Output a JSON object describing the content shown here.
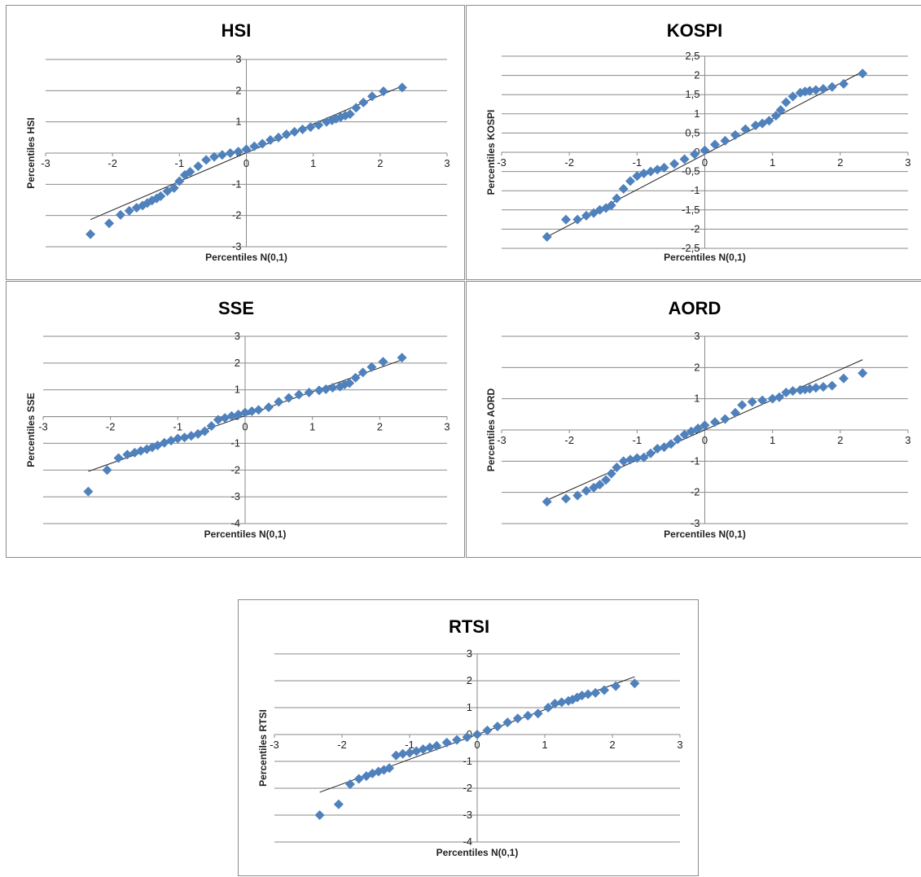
{
  "chart_data": [
    {
      "type": "scatter",
      "title": "HSI",
      "xlabel": "Percentiles N(0,1)",
      "ylabel": "Percentiles HSI",
      "xlim": [
        -3,
        3
      ],
      "ylim": [
        -3,
        3
      ],
      "xticks": [
        "-3",
        "-2",
        "-1",
        "0",
        "1",
        "2",
        "3"
      ],
      "yticks": [
        "3",
        "2",
        "1",
        "0",
        "-1",
        "-2",
        "-3"
      ],
      "grid": true,
      "marker_color": "#4F81BD",
      "reference_line": [
        [
          -2.33,
          -2.13
        ],
        [
          2.33,
          2.15
        ]
      ],
      "series": [
        {
          "x": [
            -2.33,
            -2.05,
            -1.88,
            -1.75,
            -1.64,
            -1.55,
            -1.48,
            -1.41,
            -1.34,
            -1.28,
            -1.18,
            -1.08,
            -1.0,
            -0.92,
            -0.84,
            -0.72,
            -0.6,
            -0.48,
            -0.36,
            -0.24,
            -0.12,
            0.0,
            0.12,
            0.24,
            0.36,
            0.48,
            0.6,
            0.72,
            0.84,
            0.96,
            1.08,
            1.2,
            1.28,
            1.34,
            1.41,
            1.48,
            1.55,
            1.64,
            1.75,
            1.88,
            2.05,
            2.33
          ],
          "y": [
            -2.6,
            -2.25,
            -1.98,
            -1.85,
            -1.75,
            -1.68,
            -1.6,
            -1.52,
            -1.45,
            -1.38,
            -1.22,
            -1.12,
            -0.9,
            -0.7,
            -0.6,
            -0.42,
            -0.22,
            -0.12,
            -0.06,
            0.0,
            0.05,
            0.12,
            0.22,
            0.3,
            0.42,
            0.5,
            0.6,
            0.68,
            0.76,
            0.83,
            0.9,
            1.0,
            1.05,
            1.1,
            1.15,
            1.2,
            1.25,
            1.45,
            1.62,
            1.82,
            1.98,
            2.1
          ]
        }
      ]
    },
    {
      "type": "scatter",
      "title": "KOSPI",
      "xlabel": "Percentiles N(0,1)",
      "ylabel": "Percentiles KOSPI",
      "xlim": [
        -3,
        3
      ],
      "ylim": [
        -2.5,
        2.5
      ],
      "xticks": [
        "-3",
        "-2",
        "-1",
        "0",
        "1",
        "2",
        "3"
      ],
      "yticks": [
        "2,5",
        "2",
        "1,5",
        "1",
        "0,5",
        "0",
        "-0,5",
        "-1",
        "-1,5",
        "-2",
        "-2,5"
      ],
      "grid": true,
      "marker_color": "#4F81BD",
      "reference_line": [
        [
          -2.33,
          -2.2
        ],
        [
          2.33,
          2.1
        ]
      ],
      "series": [
        {
          "x": [
            -2.33,
            -2.05,
            -1.88,
            -1.75,
            -1.64,
            -1.55,
            -1.46,
            -1.38,
            -1.3,
            -1.2,
            -1.1,
            -1.0,
            -0.9,
            -0.8,
            -0.7,
            -0.6,
            -0.45,
            -0.3,
            -0.15,
            0.0,
            0.15,
            0.3,
            0.45,
            0.6,
            0.75,
            0.85,
            0.95,
            1.05,
            1.12,
            1.2,
            1.3,
            1.41,
            1.48,
            1.55,
            1.64,
            1.75,
            1.88,
            2.05,
            2.33
          ],
          "y": [
            -2.2,
            -1.75,
            -1.75,
            -1.65,
            -1.58,
            -1.5,
            -1.45,
            -1.38,
            -1.2,
            -0.95,
            -0.75,
            -0.62,
            -0.55,
            -0.5,
            -0.45,
            -0.4,
            -0.3,
            -0.18,
            -0.05,
            0.05,
            0.2,
            0.3,
            0.45,
            0.6,
            0.7,
            0.75,
            0.82,
            0.95,
            1.1,
            1.3,
            1.45,
            1.55,
            1.58,
            1.6,
            1.62,
            1.65,
            1.7,
            1.78,
            2.05
          ]
        }
      ]
    },
    {
      "type": "scatter",
      "title": "SSE",
      "xlabel": "Percentiles N(0,1)",
      "ylabel": "Percentiles SSE",
      "xlim": [
        -3,
        3
      ],
      "ylim": [
        -4,
        3
      ],
      "xticks": [
        "-3",
        "-2",
        "-1",
        "0",
        "1",
        "2",
        "3"
      ],
      "yticks": [
        "3",
        "2",
        "1",
        "0",
        "-1",
        "-2",
        "-3",
        "-4"
      ],
      "grid": true,
      "marker_color": "#4F81BD",
      "reference_line": [
        [
          -2.33,
          -2.05
        ],
        [
          2.33,
          2.12
        ]
      ],
      "series": [
        {
          "x": [
            -2.33,
            -2.05,
            -1.88,
            -1.75,
            -1.64,
            -1.55,
            -1.46,
            -1.38,
            -1.3,
            -1.2,
            -1.1,
            -1.0,
            -0.9,
            -0.8,
            -0.7,
            -0.6,
            -0.5,
            -0.4,
            -0.3,
            -0.2,
            -0.1,
            0.0,
            0.1,
            0.2,
            0.35,
            0.5,
            0.65,
            0.8,
            0.95,
            1.1,
            1.2,
            1.3,
            1.41,
            1.48,
            1.55,
            1.64,
            1.75,
            1.88,
            2.05,
            2.33
          ],
          "y": [
            -2.8,
            -2.0,
            -1.55,
            -1.42,
            -1.35,
            -1.28,
            -1.22,
            -1.15,
            -1.08,
            -0.98,
            -0.9,
            -0.82,
            -0.78,
            -0.72,
            -0.65,
            -0.55,
            -0.35,
            -0.12,
            -0.05,
            0.02,
            0.08,
            0.15,
            0.2,
            0.25,
            0.35,
            0.55,
            0.7,
            0.82,
            0.9,
            0.98,
            1.02,
            1.08,
            1.12,
            1.2,
            1.25,
            1.45,
            1.65,
            1.85,
            2.05,
            2.2
          ]
        }
      ]
    },
    {
      "type": "scatter",
      "title": "AORD",
      "xlabel": "Percentiles N(0,1)",
      "ylabel": "Percentiles AORD",
      "xlim": [
        -3,
        3
      ],
      "ylim": [
        -3,
        3
      ],
      "xticks": [
        "-3",
        "-2",
        "-1",
        "0",
        "1",
        "2",
        "3"
      ],
      "yticks": [
        "3",
        "2",
        "1",
        "0",
        "-1",
        "-2",
        "-3"
      ],
      "grid": true,
      "marker_color": "#4F81BD",
      "reference_line": [
        [
          -2.33,
          -2.25
        ],
        [
          2.33,
          2.25
        ]
      ],
      "series": [
        {
          "x": [
            -2.33,
            -2.05,
            -1.88,
            -1.75,
            -1.64,
            -1.55,
            -1.46,
            -1.38,
            -1.3,
            -1.2,
            -1.1,
            -1.0,
            -0.9,
            -0.8,
            -0.7,
            -0.6,
            -0.5,
            -0.4,
            -0.3,
            -0.2,
            -0.1,
            0.0,
            0.15,
            0.3,
            0.45,
            0.55,
            0.7,
            0.85,
            1.0,
            1.1,
            1.2,
            1.3,
            1.41,
            1.48,
            1.55,
            1.64,
            1.75,
            1.88,
            2.05,
            2.33
          ],
          "y": [
            -2.3,
            -2.2,
            -2.1,
            -1.95,
            -1.85,
            -1.75,
            -1.6,
            -1.4,
            -1.2,
            -1.0,
            -0.95,
            -0.9,
            -0.88,
            -0.75,
            -0.6,
            -0.55,
            -0.45,
            -0.3,
            -0.15,
            -0.05,
            0.05,
            0.15,
            0.25,
            0.35,
            0.55,
            0.8,
            0.9,
            0.95,
            1.0,
            1.05,
            1.2,
            1.25,
            1.28,
            1.3,
            1.32,
            1.35,
            1.38,
            1.42,
            1.65,
            1.82
          ]
        }
      ]
    },
    {
      "type": "scatter",
      "title": "RTSI",
      "xlabel": "Percentiles N(0,1)",
      "ylabel": "Percentiles RTSI",
      "xlim": [
        -3,
        3
      ],
      "ylim": [
        -4,
        3
      ],
      "xticks": [
        "-3",
        "-2",
        "-1",
        "0",
        "1",
        "2",
        "3"
      ],
      "yticks": [
        "3",
        "2",
        "1",
        "0",
        "-1",
        "-2",
        "-3",
        "-4"
      ],
      "grid": true,
      "marker_color": "#4F81BD",
      "reference_line": [
        [
          -2.33,
          -2.15
        ],
        [
          2.33,
          2.15
        ]
      ],
      "series": [
        {
          "x": [
            -2.33,
            -2.05,
            -1.88,
            -1.75,
            -1.64,
            -1.55,
            -1.46,
            -1.38,
            -1.3,
            -1.2,
            -1.1,
            -1.0,
            -0.9,
            -0.8,
            -0.7,
            -0.6,
            -0.45,
            -0.3,
            -0.15,
            0.0,
            0.15,
            0.3,
            0.45,
            0.6,
            0.75,
            0.9,
            1.05,
            1.15,
            1.25,
            1.35,
            1.41,
            1.48,
            1.55,
            1.64,
            1.75,
            1.88,
            2.05,
            2.33
          ],
          "y": [
            -3.0,
            -2.6,
            -1.85,
            -1.65,
            -1.55,
            -1.45,
            -1.38,
            -1.32,
            -1.25,
            -0.78,
            -0.72,
            -0.68,
            -0.62,
            -0.55,
            -0.48,
            -0.42,
            -0.3,
            -0.2,
            -0.1,
            0.0,
            0.15,
            0.3,
            0.45,
            0.6,
            0.7,
            0.78,
            1.0,
            1.15,
            1.2,
            1.25,
            1.3,
            1.38,
            1.45,
            1.5,
            1.55,
            1.65,
            1.8,
            1.9
          ]
        }
      ]
    }
  ]
}
